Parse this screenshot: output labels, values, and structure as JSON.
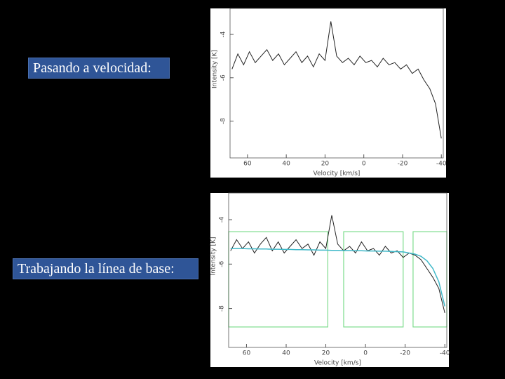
{
  "slide": {
    "labels": [
      "Pasando a velocidad:",
      "Trabajando la línea de base:"
    ]
  },
  "chart_data": [
    {
      "type": "line",
      "xlabel": "Velocity  [km/s]",
      "ylabel": "Intensity [K]",
      "xlim": [
        69,
        -41
      ],
      "xticks": [
        60,
        40,
        20,
        0,
        -20,
        -40
      ],
      "ylim": [
        -9.7,
        -2.8
      ],
      "yticks": [
        -4,
        -6,
        -8
      ],
      "x": [
        68,
        65,
        62,
        59,
        56,
        53,
        50,
        47,
        44,
        41,
        38,
        35,
        32,
        29,
        26,
        23,
        20,
        17,
        14,
        11,
        8,
        5,
        2,
        -1,
        -4,
        -7,
        -10,
        -13,
        -16,
        -19,
        -22,
        -25,
        -28,
        -31,
        -34,
        -37,
        -40
      ],
      "series": [
        {
          "color": "#222222",
          "values": [
            -5.6,
            -4.9,
            -5.4,
            -4.8,
            -5.3,
            -5.0,
            -4.7,
            -5.2,
            -4.9,
            -5.4,
            -5.1,
            -4.8,
            -5.3,
            -5.0,
            -5.5,
            -4.9,
            -5.2,
            -3.4,
            -5.0,
            -5.3,
            -5.1,
            -5.4,
            -5.0,
            -5.3,
            -5.2,
            -5.5,
            -5.1,
            -5.4,
            -5.3,
            -5.6,
            -5.4,
            -5.8,
            -5.6,
            -6.1,
            -6.5,
            -7.2,
            -8.8
          ]
        }
      ]
    },
    {
      "type": "line",
      "xlabel": "Velocity  [km/s]",
      "ylabel": "Intensity [K]",
      "xlim": [
        69,
        -41
      ],
      "xticks": [
        60,
        40,
        20,
        0,
        -20,
        -40
      ],
      "ylim": [
        -9.75,
        -2.8
      ],
      "yticks": [
        -4,
        -6,
        -8
      ],
      "x": [
        68,
        65,
        62,
        59,
        56,
        53,
        50,
        47,
        44,
        41,
        38,
        35,
        32,
        29,
        26,
        23,
        20,
        17,
        14,
        11,
        8,
        5,
        2,
        -1,
        -4,
        -7,
        -10,
        -13,
        -16,
        -19,
        -22,
        -25,
        -28,
        -31,
        -34,
        -37,
        -40
      ],
      "series": [
        {
          "color": "#222222",
          "values": [
            -5.4,
            -4.9,
            -5.3,
            -5.0,
            -5.5,
            -5.1,
            -4.8,
            -5.4,
            -5.0,
            -5.5,
            -5.2,
            -4.9,
            -5.3,
            -5.1,
            -5.6,
            -5.0,
            -5.3,
            -3.8,
            -5.1,
            -5.4,
            -5.2,
            -5.5,
            -5.0,
            -5.4,
            -5.3,
            -5.6,
            -5.2,
            -5.5,
            -5.4,
            -5.7,
            -5.5,
            -5.6,
            -5.8,
            -6.2,
            -6.6,
            -7.1,
            -8.2
          ]
        },
        {
          "color": "#3fb8c8",
          "values": [
            -5.3,
            -5.3,
            -5.3,
            -5.31,
            -5.31,
            -5.32,
            -5.32,
            -5.33,
            -5.33,
            -5.34,
            -5.34,
            -5.35,
            -5.35,
            -5.36,
            -5.36,
            -5.37,
            -5.37,
            -5.38,
            -5.38,
            -5.39,
            -5.39,
            -5.4,
            -5.4,
            -5.41,
            -5.41,
            -5.42,
            -5.42,
            -5.43,
            -5.44,
            -5.45,
            -5.5,
            -5.55,
            -5.65,
            -5.85,
            -6.2,
            -6.8,
            -7.9
          ]
        }
      ],
      "windows": [
        [
          69,
          19
        ],
        [
          11,
          -19
        ],
        [
          -24,
          -41
        ]
      ],
      "window_ylim": [
        -4.54,
        -8.83
      ],
      "window_color": "#7ddc8c"
    }
  ]
}
